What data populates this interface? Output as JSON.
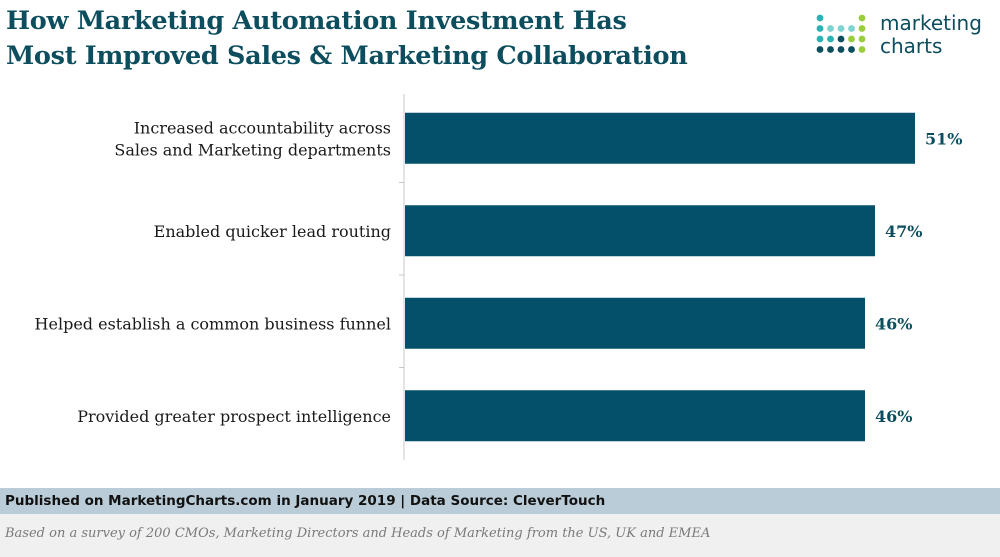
{
  "header": {
    "title_line1": "How Marketing Automation Investment Has",
    "title_line2": "Most Improved Sales & Marketing Collaboration"
  },
  "logo": {
    "line1": "marketing",
    "line2": "charts",
    "colors": {
      "dark": "#0c4d5e",
      "teal": "#2bb3b3",
      "light_teal": "#7fd4d0",
      "green": "#9acd3c"
    }
  },
  "colors": {
    "bar": "#04506a",
    "value_text": "#0c4d5e",
    "footer_bar_bg": "#b9ccd7",
    "footer_note_bg": "#f0f0f0"
  },
  "chart_data": {
    "type": "bar",
    "orientation": "horizontal",
    "categories": [
      [
        "Increased accountability across",
        "Sales and Marketing departments"
      ],
      [
        "Enabled quicker lead routing"
      ],
      [
        "Helped establish a common business funnel"
      ],
      [
        "Provided greater prospect intelligence"
      ]
    ],
    "values": [
      51,
      47,
      46,
      46
    ],
    "value_labels": [
      "51%",
      "47%",
      "46%",
      "46%"
    ],
    "unit": "%",
    "xlim": [
      0,
      56
    ],
    "grid": false,
    "legend": "none"
  },
  "footer": {
    "published": "Published on MarketingCharts.com in January 2019 | Data Source: CleverTouch",
    "note": "Based on a survey of 200 CMOs, Marketing Directors and Heads of Marketing from the US, UK and EMEA"
  }
}
